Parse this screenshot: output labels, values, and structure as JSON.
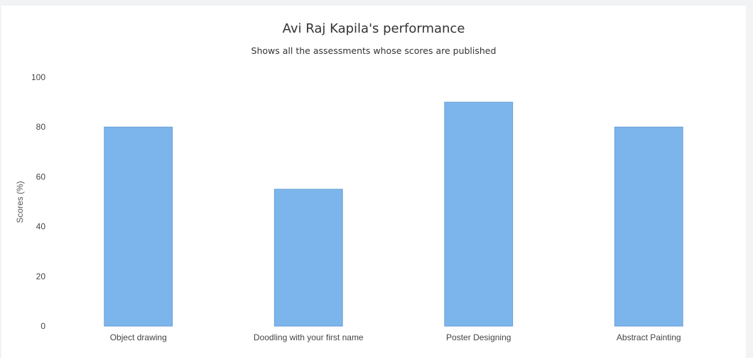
{
  "chart_data": {
    "type": "bar",
    "title": "Avi Raj Kapila's performance",
    "subtitle": "Shows all the assessments whose scores are published",
    "xlabel": "",
    "ylabel": "Scores (%)",
    "categories": [
      "Object drawing",
      "Doodling with your first name",
      "Poster Designing",
      "Abstract Painting"
    ],
    "values": [
      80,
      55,
      90,
      80
    ],
    "ylim": [
      0,
      100
    ],
    "yticks": [
      "0",
      "20",
      "40",
      "60",
      "80",
      "100"
    ],
    "grid": false,
    "bar_color": "#7cb5ec",
    "bar_border_color": "#6a9fd4"
  }
}
